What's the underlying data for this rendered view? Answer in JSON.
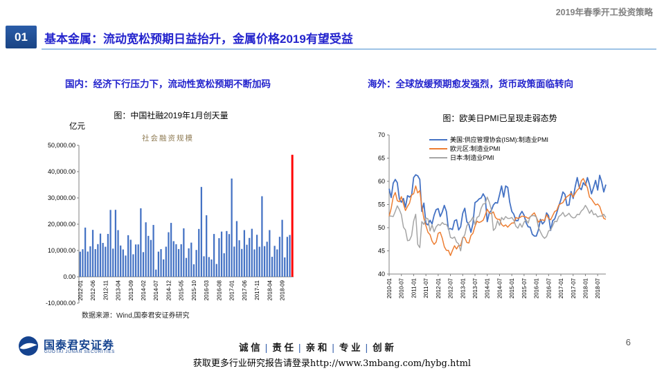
{
  "header": {
    "right_label": "2019年春季开工投资策略"
  },
  "title": {
    "number": "01",
    "text": "基本金属：流动宽松预期日益抬升，金属价格2019有望受益"
  },
  "sections": {
    "left_heading": "国内：经济下行压力下，流动性宽松预期不断加码",
    "right_heading": "海外：全球放缓预期愈发强烈，货币政策面临转向"
  },
  "colors": {
    "accent_blue": "#2424CD",
    "badge_blue": "#1E4C94",
    "rule_light_blue": "#9DC3E6",
    "header_gray": "#808080",
    "logo_blue": "#15438F",
    "bar_blue": "#4472C4",
    "highlight_red": "#FF0000",
    "eurozone_orange": "#ED7D31",
    "japan_gray": "#A5A5A5"
  },
  "chart_data": [
    {
      "type": "bar",
      "title": "图：中国社融2019年1月创天量",
      "unit_label": "亿元",
      "series_label": "社会融资规模",
      "source": "数据来源：Wind,国泰君安证券研究",
      "ylim": [
        -10000,
        50000
      ],
      "ytick_values": [
        50000,
        40000,
        30000,
        20000,
        10000,
        0,
        -10000
      ],
      "ytick_labels": [
        "50,000.00",
        "40,000.00",
        "30,000.00",
        "20,000.00",
        "10,000.00",
        "0.00",
        "-10,000.00"
      ],
      "xtick_labels": [
        "2012-01",
        "2012-06",
        "2012-11",
        "2013-04",
        "2013-09",
        "2014-02",
        "2014-07",
        "2014-12",
        "2015-05",
        "2015-10",
        "2016-03",
        "2016-08",
        "2017-01",
        "2017-06",
        "2017-11",
        "2018-04",
        "2018-09"
      ],
      "xtick_every": 5,
      "x_start": "2012-01",
      "x_end": "2019-01",
      "bar_color": "#4472C4",
      "highlight_color": "#FF0000",
      "highlight_index": 84,
      "values": [
        9559,
        10486,
        18717,
        9607,
        11599,
        17848,
        10523,
        12436,
        16425,
        12892,
        11436,
        16314,
        25440,
        10719,
        25476,
        17759,
        11898,
        10398,
        8088,
        15822,
        14089,
        8564,
        12297,
        12319,
        26044,
        9387,
        20727,
        15565,
        14022,
        19726,
        2750,
        9574,
        10520,
        6627,
        11459,
        16951,
        20505,
        13558,
        12400,
        10561,
        12395,
        18435,
        7188,
        10832,
        13001,
        4767,
        10208,
        18199,
        34173,
        7802,
        23402,
        7510,
        6599,
        16293,
        4879,
        14691,
        17200,
        8963,
        17406,
        16257,
        37374,
        11496,
        21184,
        13894,
        10599,
        17767,
        12203,
        14787,
        18263,
        10422,
        15982,
        11441,
        30644,
        11665,
        13344,
        17764,
        7608,
        11776,
        10415,
        15216,
        21675,
        7371,
        15191,
        15898,
        46400
      ]
    },
    {
      "type": "line",
      "title": "图：欧美日PMI已呈现走弱态势",
      "ylim": [
        40,
        70
      ],
      "yticks": [
        70,
        65,
        60,
        55,
        50,
        45,
        40
      ],
      "xtick_labels": [
        "2010-01",
        "2010-07",
        "2011-01",
        "2011-07",
        "2012-01",
        "2012-07",
        "2013-01",
        "2013-07",
        "2014-01",
        "2014-07",
        "2015-01",
        "2015-07",
        "2016-01",
        "2016-07",
        "2017-01",
        "2017-07",
        "2018-01",
        "2018-07"
      ],
      "xtick_every": 6,
      "x_start": "2010-01",
      "x_end": "2018-11",
      "legend_position": "top",
      "series": [
        {
          "name": "美国:供应管理协会(ISM):制造业PMI",
          "color": "#4472C4",
          "values": [
            58.4,
            56.5,
            59.6,
            60.4,
            59.7,
            56.2,
            55.5,
            56.3,
            54.4,
            56.9,
            56.6,
            57.0,
            60.8,
            61.4,
            61.2,
            60.4,
            53.5,
            55.3,
            50.9,
            50.6,
            51.6,
            50.8,
            52.7,
            53.9,
            54.1,
            52.4,
            53.4,
            54.8,
            53.5,
            49.7,
            49.8,
            49.6,
            51.5,
            51.7,
            49.5,
            50.2,
            53.1,
            54.2,
            51.3,
            50.7,
            49.0,
            50.9,
            55.4,
            55.7,
            56.2,
            56.4,
            57.3,
            56.5,
            51.3,
            53.2,
            53.7,
            54.9,
            55.4,
            55.3,
            57.1,
            59.0,
            56.6,
            59.0,
            58.7,
            55.5,
            53.5,
            52.9,
            51.5,
            51.5,
            52.8,
            53.5,
            52.7,
            51.1,
            50.2,
            50.1,
            48.6,
            48.2,
            48.2,
            49.5,
            51.8,
            50.8,
            51.3,
            53.2,
            52.6,
            49.4,
            51.5,
            51.9,
            53.2,
            54.7,
            56.0,
            57.7,
            57.2,
            54.8,
            54.9,
            57.8,
            56.3,
            58.8,
            60.8,
            58.7,
            58.2,
            59.7,
            59.1,
            60.8,
            59.3,
            57.3,
            58.7,
            60.2,
            58.1,
            61.3,
            59.8,
            57.7,
            59.3
          ]
        },
        {
          "name": "欧元区:制造业PMI",
          "color": "#ED7D31",
          "values": [
            52.4,
            54.2,
            56.6,
            57.6,
            55.8,
            55.6,
            56.7,
            55.1,
            53.7,
            54.6,
            55.3,
            57.1,
            57.3,
            59.0,
            57.5,
            58.0,
            54.6,
            52.0,
            50.4,
            49.0,
            48.5,
            47.1,
            46.4,
            46.9,
            48.8,
            49.0,
            47.7,
            45.9,
            45.1,
            45.1,
            44.0,
            45.1,
            46.1,
            45.4,
            46.2,
            46.1,
            47.9,
            47.9,
            46.8,
            46.7,
            48.3,
            48.8,
            50.3,
            51.4,
            51.1,
            51.3,
            51.6,
            52.7,
            54.0,
            53.2,
            53.0,
            53.4,
            52.2,
            51.8,
            51.8,
            50.7,
            50.3,
            50.6,
            50.1,
            50.6,
            51.0,
            51.0,
            52.2,
            52.0,
            52.2,
            52.5,
            52.4,
            52.3,
            52.0,
            52.3,
            52.8,
            53.2,
            52.3,
            51.2,
            51.6,
            51.7,
            51.5,
            52.8,
            52.0,
            51.7,
            52.6,
            53.5,
            53.7,
            54.9,
            55.2,
            55.4,
            56.2,
            56.7,
            57.0,
            57.4,
            56.6,
            57.4,
            58.1,
            58.5,
            60.1,
            60.6,
            59.6,
            58.6,
            56.6,
            56.2,
            55.5,
            54.9,
            55.1,
            54.6,
            53.2,
            52.0,
            51.8
          ]
        },
        {
          "name": "日本:制造业PMI",
          "color": "#A5A5A5",
          "values": [
            52.5,
            52.5,
            52.4,
            53.5,
            54.7,
            53.9,
            52.8,
            50.1,
            49.5,
            47.2,
            47.3,
            48.3,
            51.4,
            52.9,
            46.4,
            45.7,
            51.3,
            50.7,
            52.1,
            51.9,
            49.3,
            50.6,
            49.1,
            50.2,
            50.7,
            50.5,
            51.1,
            50.7,
            50.7,
            49.9,
            47.9,
            47.7,
            48.0,
            46.9,
            46.5,
            45.0,
            47.7,
            48.5,
            50.4,
            51.1,
            51.5,
            52.3,
            50.7,
            52.2,
            52.5,
            54.2,
            55.1,
            55.2,
            56.6,
            55.5,
            53.9,
            49.4,
            49.9,
            51.5,
            50.5,
            52.2,
            51.7,
            52.4,
            52.0,
            52.0,
            52.2,
            51.6,
            50.3,
            49.9,
            50.9,
            50.1,
            51.2,
            51.7,
            51.0,
            52.4,
            52.6,
            52.6,
            52.3,
            50.1,
            49.1,
            48.2,
            47.7,
            48.1,
            49.3,
            49.5,
            50.4,
            51.4,
            51.3,
            52.4,
            52.7,
            53.3,
            52.4,
            52.7,
            53.1,
            52.4,
            52.1,
            52.2,
            52.9,
            52.8,
            53.6,
            54.0,
            54.8,
            54.1,
            53.1,
            53.8,
            52.8,
            53.0,
            52.3,
            52.5,
            52.5,
            52.9,
            52.2
          ]
        }
      ]
    }
  ],
  "footer": {
    "company_cn": "国泰君安证券",
    "company_en": "GUOTAI JUNAN SECURITIES",
    "values": [
      "诚 信",
      "责 任",
      "亲 和",
      "专 业",
      "创 新"
    ],
    "page_number": "6",
    "promo": "获取更多行业研究报告请登录http://www.3mbang.com/hybg.html"
  }
}
